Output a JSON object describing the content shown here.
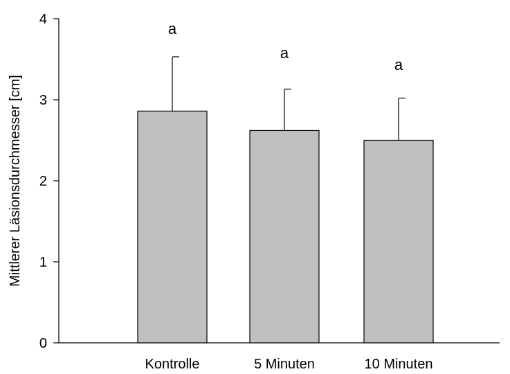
{
  "chart_data": {
    "type": "bar",
    "categories": [
      "Kontrolle",
      "5 Minuten",
      "10 Minuten"
    ],
    "values": [
      2.86,
      2.62,
      2.5
    ],
    "error_upper": [
      0.67,
      0.51,
      0.52
    ],
    "significance_labels": [
      "a",
      "a",
      "a"
    ],
    "title": "",
    "xlabel": "",
    "ylabel": "Mittlerer Läsionsdurchmesser [cm]",
    "ylim": [
      0,
      4
    ],
    "yticks": [
      0,
      1,
      2,
      3,
      4
    ],
    "grid": false,
    "legend": "none",
    "bar_color": "#c0c0c0",
    "edge_color": "#000000"
  }
}
